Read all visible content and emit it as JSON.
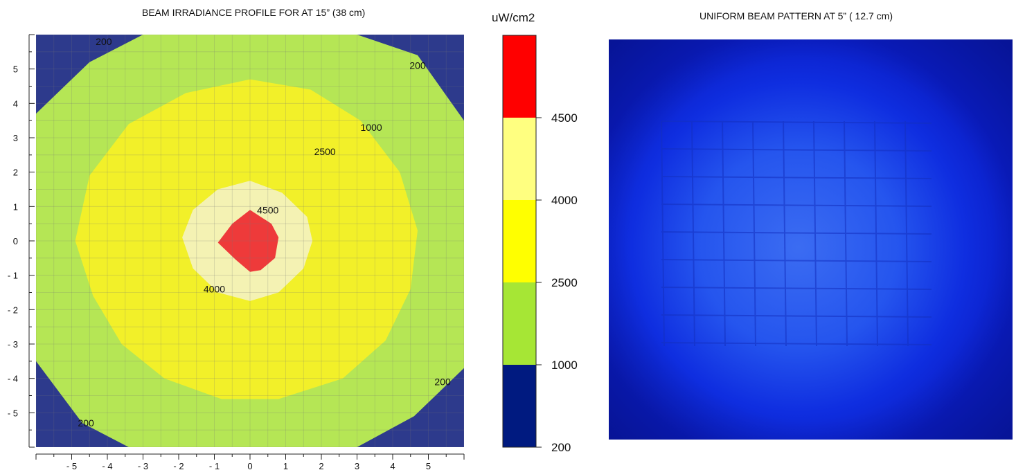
{
  "left_title": "BEAM IRRADIANCE PROFILE FOR AT 15” (38 cm)",
  "right_title": "UNIFORM BEAM PATTERN AT 5” ( 12.7 cm)",
  "colorbar_unit": "uW/cm2",
  "chart_data": [
    {
      "type": "heatmap",
      "title": "BEAM IRRADIANCE PROFILE FOR AT 15” (38 cm)",
      "xlabel": "",
      "ylabel": "",
      "xlim": [
        -6,
        6
      ],
      "ylim": [
        -6,
        6
      ],
      "x_ticks": [
        -5,
        -4,
        -3,
        -2,
        -1,
        0,
        1,
        2,
        3,
        4,
        5
      ],
      "y_ticks": [
        5,
        4,
        3,
        2,
        1,
        0,
        -1,
        -2,
        -3,
        -4,
        -5
      ],
      "x_tick_labels": [
        "- 5",
        "- 4",
        "- 3",
        "- 2",
        "- 1",
        "0",
        "1",
        "2",
        "3",
        "4",
        "5"
      ],
      "y_tick_labels": [
        "5",
        "4",
        "3",
        "2",
        "1",
        "0",
        "- 1",
        "- 2",
        "- 3",
        "- 4",
        "- 5"
      ],
      "grid": true,
      "levels": [
        {
          "min": 0,
          "max": 200,
          "color": "#2d3a8c"
        },
        {
          "min": 200,
          "max": 1000,
          "color": "#b5e655"
        },
        {
          "min": 1000,
          "max": 2500,
          "color": "#f2f029"
        },
        {
          "min": 2500,
          "max": 4000,
          "color": "#f4f2b3"
        },
        {
          "min": 4000,
          "max": 4500,
          "color": "#ee3a3a"
        }
      ],
      "contour_labels": [
        {
          "text": "200",
          "x": -4.1,
          "y": 5.7
        },
        {
          "text": "200",
          "x": 4.7,
          "y": 5.0
        },
        {
          "text": "1000",
          "x": 3.4,
          "y": 3.2
        },
        {
          "text": "2500",
          "x": 2.1,
          "y": 2.5
        },
        {
          "text": "4500",
          "x": 0.5,
          "y": 0.8
        },
        {
          "text": "4000",
          "x": -1.0,
          "y": -1.5
        },
        {
          "text": "200",
          "x": 5.4,
          "y": -4.2
        },
        {
          "text": "200",
          "x": -4.6,
          "y": -5.4
        }
      ],
      "contours": [
        {
          "level": 200,
          "points": [
            [
              -6,
              3.7
            ],
            [
              -4.5,
              5.2
            ],
            [
              -3,
              6
            ],
            [
              3,
              6
            ],
            [
              4.7,
              5.4
            ],
            [
              6,
              3.5
            ],
            [
              6,
              -3.7
            ],
            [
              4.6,
              -5.1
            ],
            [
              3,
              -6
            ],
            [
              -3.4,
              -6
            ],
            [
              -4.7,
              -5.3
            ],
            [
              -6,
              -3.5
            ]
          ]
        },
        {
          "level": 1000,
          "points": [
            [
              0,
              4.7
            ],
            [
              1.7,
              4.4
            ],
            [
              3.1,
              3.5
            ],
            [
              4.2,
              2.0
            ],
            [
              4.7,
              0.3
            ],
            [
              4.5,
              -1.4
            ],
            [
              3.8,
              -2.9
            ],
            [
              2.6,
              -4.0
            ],
            [
              0.8,
              -4.6
            ],
            [
              -0.8,
              -4.6
            ],
            [
              -2.4,
              -4.0
            ],
            [
              -3.6,
              -3.0
            ],
            [
              -4.4,
              -1.6
            ],
            [
              -4.9,
              0
            ],
            [
              -4.5,
              1.9
            ],
            [
              -3.4,
              3.4
            ],
            [
              -1.8,
              4.3
            ]
          ]
        },
        {
          "level": 2500,
          "points": [
            [
              0,
              1.75
            ],
            [
              0.9,
              1.4
            ],
            [
              1.6,
              0.7
            ],
            [
              1.75,
              0
            ],
            [
              1.5,
              -0.8
            ],
            [
              0.8,
              -1.5
            ],
            [
              0,
              -1.75
            ],
            [
              -0.9,
              -1.5
            ],
            [
              -1.6,
              -0.8
            ],
            [
              -1.9,
              0.1
            ],
            [
              -1.6,
              0.9
            ],
            [
              -0.9,
              1.5
            ]
          ]
        },
        {
          "level": 4000,
          "points": [
            [
              0,
              0.9
            ],
            [
              0.6,
              0.5
            ],
            [
              0.8,
              0.1
            ],
            [
              0.7,
              -0.5
            ],
            [
              0.3,
              -0.85
            ],
            [
              0,
              -0.9
            ],
            [
              -0.4,
              -0.55
            ],
            [
              -0.9,
              -0.05
            ],
            [
              -0.5,
              0.5
            ]
          ]
        }
      ]
    },
    {
      "type": "colorbar",
      "unit": "uW/cm2",
      "tick_labels": [
        "4500",
        "4000",
        "2500",
        "1000",
        "200"
      ],
      "bands": [
        "#ff0000",
        "#ffff80",
        "#ffff00",
        "#a6e635",
        "#001a80"
      ]
    }
  ],
  "photo": {
    "description_name": "beam-pattern-photo",
    "base_color": "#0a21d9",
    "center_color": "#3b6cf2",
    "grid_color": "#1430c0"
  }
}
